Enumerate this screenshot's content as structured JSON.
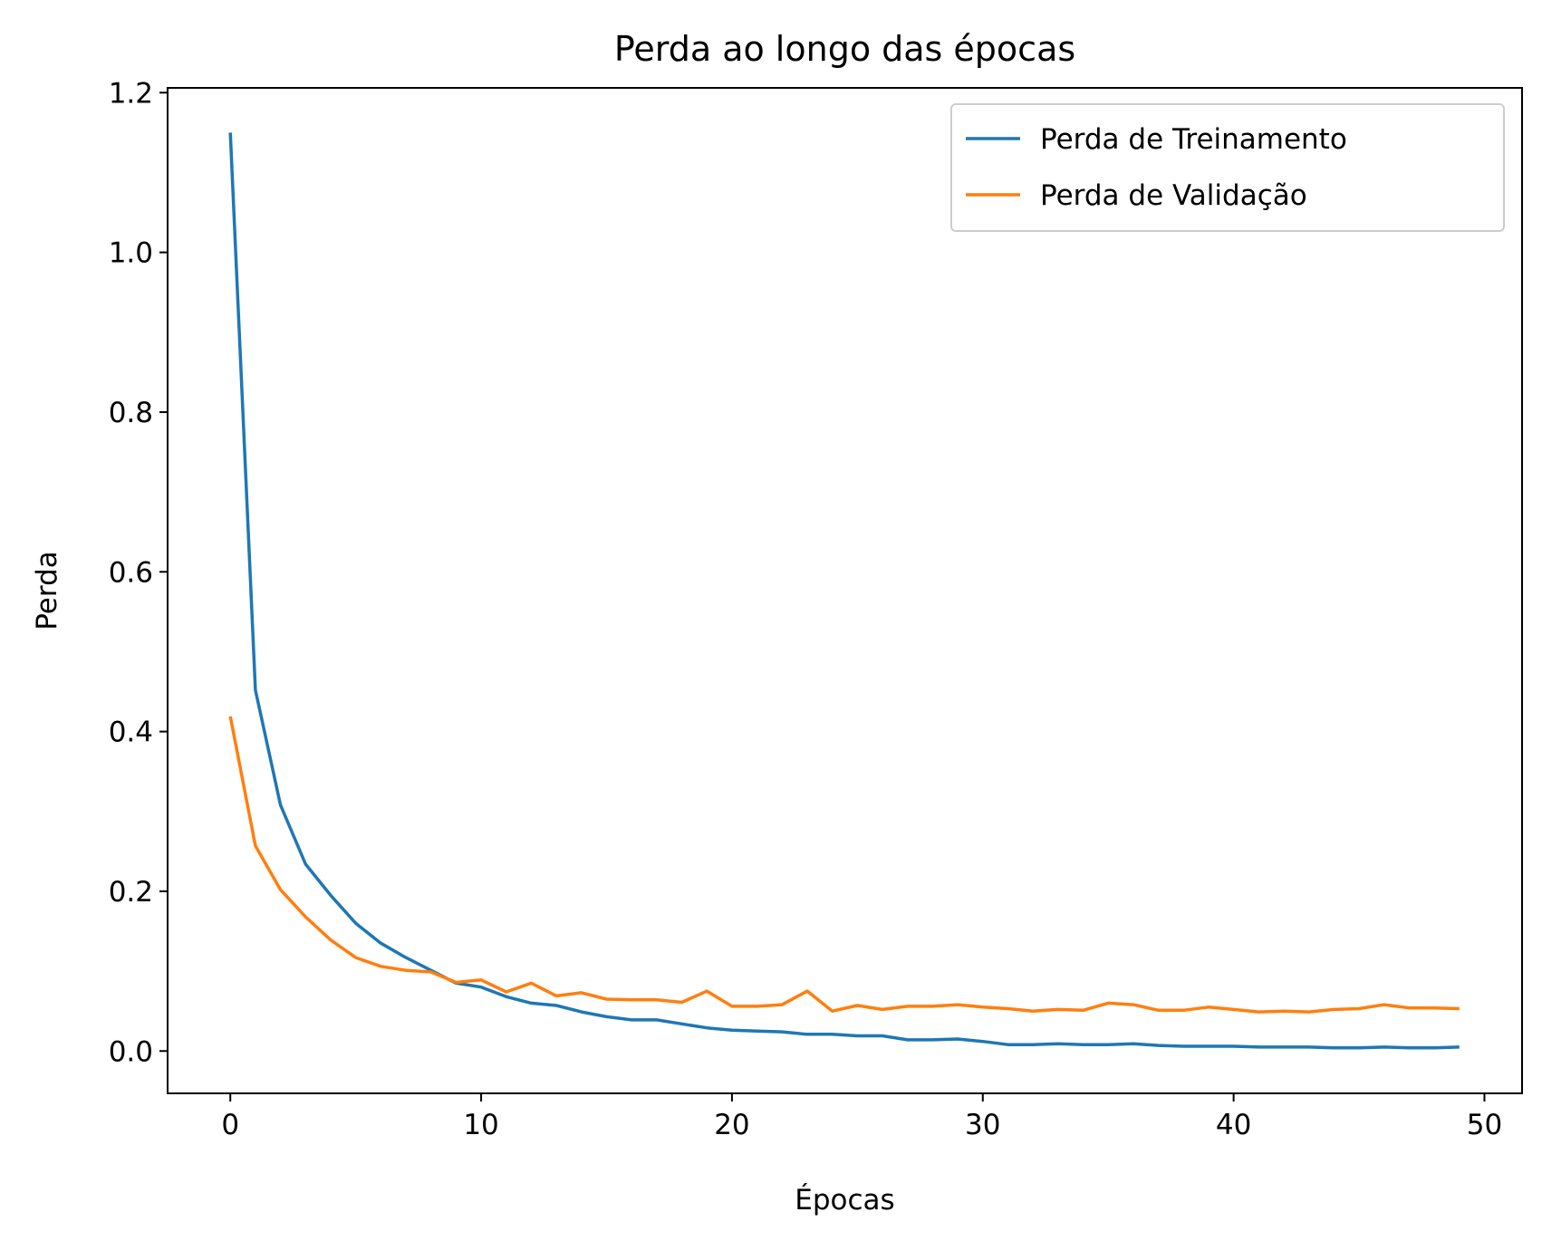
{
  "chart_data": {
    "type": "line",
    "title": "Perda ao longo das épocas",
    "xlabel": "Épocas",
    "ylabel": "Perda",
    "xlim": [
      -2.5,
      51.5
    ],
    "ylim": [
      -0.053,
      1.206
    ],
    "xticks": [
      0,
      10,
      20,
      30,
      40,
      50
    ],
    "yticks": [
      0.0,
      0.2,
      0.4,
      0.6,
      0.8,
      1.0,
      1.2
    ],
    "xtick_labels": [
      "0",
      "10",
      "20",
      "30",
      "40",
      "50"
    ],
    "ytick_labels": [
      "0.0",
      "0.2",
      "0.4",
      "0.6",
      "0.8",
      "1.0",
      "1.2"
    ],
    "grid": false,
    "legend_position": "top-right",
    "x": [
      0,
      1,
      2,
      3,
      4,
      5,
      6,
      7,
      8,
      9,
      10,
      11,
      12,
      13,
      14,
      15,
      16,
      17,
      18,
      19,
      20,
      21,
      22,
      23,
      24,
      25,
      26,
      27,
      28,
      29,
      30,
      31,
      32,
      33,
      34,
      35,
      36,
      37,
      38,
      39,
      40,
      41,
      42,
      43,
      44,
      45,
      46,
      47,
      48,
      49
    ],
    "series": [
      {
        "name": "Perda de Treinamento",
        "color": "#1f77b4",
        "values": [
          1.15,
          0.452,
          0.308,
          0.234,
          0.195,
          0.16,
          0.135,
          0.117,
          0.101,
          0.085,
          0.08,
          0.068,
          0.06,
          0.057,
          0.049,
          0.043,
          0.039,
          0.039,
          0.034,
          0.029,
          0.026,
          0.025,
          0.024,
          0.021,
          0.021,
          0.019,
          0.019,
          0.014,
          0.014,
          0.015,
          0.012,
          0.008,
          0.008,
          0.009,
          0.008,
          0.008,
          0.009,
          0.007,
          0.006,
          0.006,
          0.006,
          0.005,
          0.005,
          0.005,
          0.004,
          0.004,
          0.005,
          0.004,
          0.004,
          0.005
        ]
      },
      {
        "name": "Perda de Validação",
        "color": "#ff7f0e",
        "values": [
          0.419,
          0.257,
          0.202,
          0.168,
          0.139,
          0.117,
          0.106,
          0.101,
          0.099,
          0.086,
          0.089,
          0.074,
          0.085,
          0.069,
          0.073,
          0.065,
          0.064,
          0.064,
          0.061,
          0.075,
          0.056,
          0.056,
          0.058,
          0.075,
          0.05,
          0.057,
          0.052,
          0.056,
          0.056,
          0.058,
          0.055,
          0.053,
          0.05,
          0.052,
          0.051,
          0.06,
          0.058,
          0.051,
          0.051,
          0.055,
          0.052,
          0.049,
          0.05,
          0.049,
          0.052,
          0.053,
          0.058,
          0.054,
          0.054,
          0.053
        ]
      }
    ]
  }
}
